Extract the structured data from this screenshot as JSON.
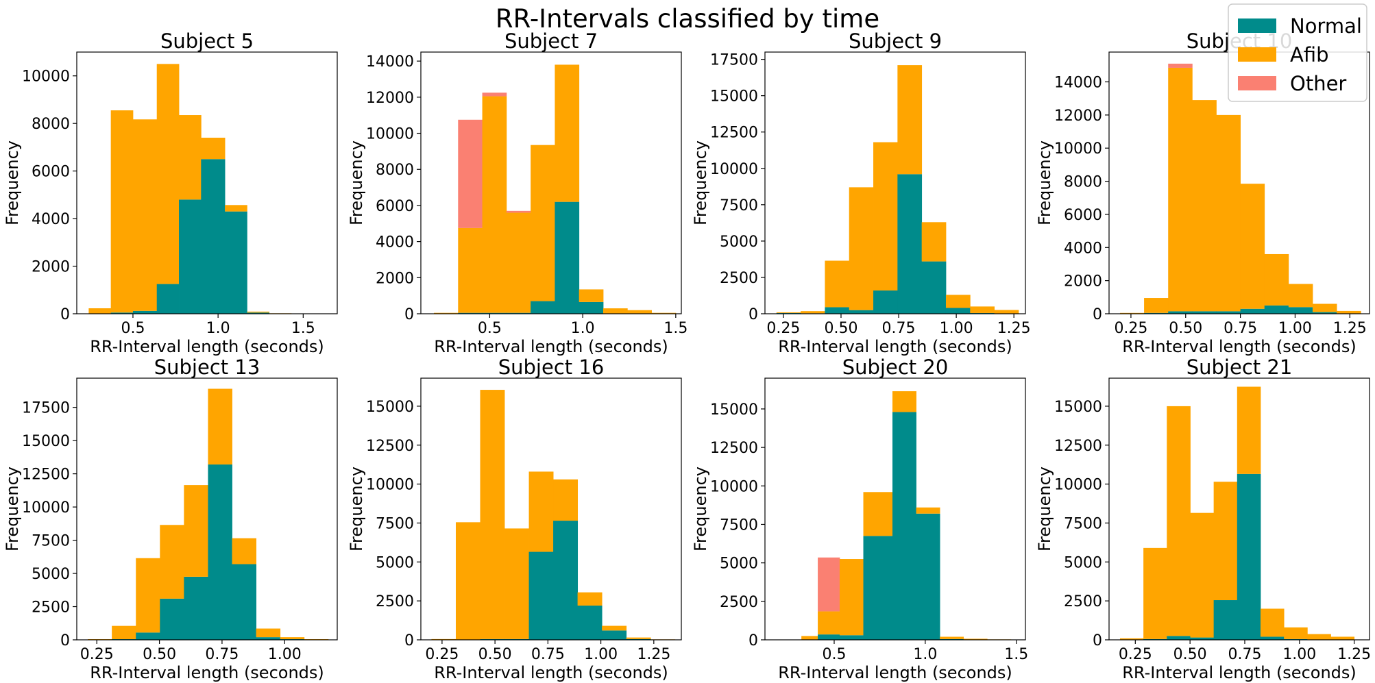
{
  "figure_title": "RR-Intervals classified by time",
  "legend": {
    "placement": "top-right",
    "items": [
      {
        "label": "Normal",
        "color": "#008B8B"
      },
      {
        "label": "Afib",
        "color": "#FFA500"
      },
      {
        "label": "Other",
        "color": "#FA8072"
      }
    ]
  },
  "chart_data": [
    {
      "type": "bar",
      "stacked": true,
      "title": "Subject 5",
      "xlabel": "RR-Interval length (seconds)",
      "ylabel": "Frequency",
      "xlim": [
        0.17,
        1.7
      ],
      "ylim": [
        0,
        11000
      ],
      "xticks": [
        0.5,
        1.0,
        1.5
      ],
      "xtick_labels": [
        "0.5",
        "1.0",
        "1.5"
      ],
      "yticks": [
        0,
        2000,
        4000,
        6000,
        8000,
        10000
      ],
      "ytick_labels": [
        "0",
        "2000",
        "4000",
        "6000",
        "8000",
        "10000"
      ],
      "bin_edges": [
        0.24,
        0.37,
        0.5,
        0.64,
        0.77,
        0.9,
        1.04,
        1.17,
        1.3,
        1.43,
        1.57,
        1.7
      ],
      "series": [
        {
          "name": "Normal",
          "values": [
            0,
            50,
            120,
            1250,
            4800,
            6500,
            4300,
            50,
            10,
            5,
            0
          ]
        },
        {
          "name": "Afib",
          "values": [
            230,
            8500,
            8050,
            9250,
            3550,
            900,
            270,
            40,
            10,
            5,
            0
          ]
        },
        {
          "name": "Other",
          "values": [
            0,
            0,
            0,
            0,
            0,
            0,
            0,
            0,
            0,
            0,
            0
          ]
        }
      ]
    },
    {
      "type": "bar",
      "stacked": true,
      "title": "Subject 7",
      "xlabel": "RR-Interval length (seconds)",
      "ylabel": "Frequency",
      "xlim": [
        0.13,
        1.53
      ],
      "ylim": [
        0,
        14500
      ],
      "xticks": [
        0.5,
        1.0,
        1.5
      ],
      "xtick_labels": [
        "0.5",
        "1.0",
        "1.5"
      ],
      "yticks": [
        0,
        2000,
        4000,
        6000,
        8000,
        10000,
        12000,
        14000
      ],
      "ytick_labels": [
        "0",
        "2000",
        "4000",
        "6000",
        "8000",
        "10000",
        "12000",
        "14000"
      ],
      "bin_edges": [
        0.2,
        0.33,
        0.46,
        0.59,
        0.72,
        0.85,
        0.98,
        1.11,
        1.24,
        1.37,
        1.5
      ],
      "series": [
        {
          "name": "Normal",
          "values": [
            0,
            50,
            50,
            50,
            700,
            6200,
            650,
            0,
            0,
            0
          ]
        },
        {
          "name": "Afib",
          "values": [
            50,
            4700,
            12000,
            5550,
            8650,
            7600,
            700,
            300,
            200,
            50
          ]
        },
        {
          "name": "Other",
          "values": [
            0,
            6000,
            200,
            100,
            0,
            0,
            0,
            0,
            0,
            0
          ]
        }
      ]
    },
    {
      "type": "bar",
      "stacked": true,
      "title": "Subject 9",
      "xlabel": "RR-Interval length (seconds)",
      "ylabel": "Frequency",
      "xlim": [
        0.17,
        1.3
      ],
      "ylim": [
        0,
        18000
      ],
      "xticks": [
        0.25,
        0.5,
        0.75,
        1.0,
        1.25
      ],
      "xtick_labels": [
        "0.25",
        "0.50",
        "0.75",
        "1.00",
        "1.25"
      ],
      "yticks": [
        0,
        2500,
        5000,
        7500,
        10000,
        12500,
        15000,
        17500
      ],
      "ytick_labels": [
        "0",
        "2500",
        "5000",
        "7500",
        "10000",
        "12500",
        "15000",
        "17500"
      ],
      "bin_edges": [
        0.22,
        0.325,
        0.43,
        0.535,
        0.64,
        0.745,
        0.85,
        0.955,
        1.06,
        1.165,
        1.27
      ],
      "series": [
        {
          "name": "Normal",
          "values": [
            50,
            30,
            450,
            250,
            1600,
            9600,
            3600,
            400,
            50,
            10
          ]
        },
        {
          "name": "Afib",
          "values": [
            50,
            150,
            3200,
            8450,
            10200,
            7500,
            2700,
            900,
            450,
            250
          ]
        },
        {
          "name": "Other",
          "values": [
            0,
            0,
            0,
            0,
            0,
            0,
            0,
            0,
            0,
            0
          ]
        }
      ]
    },
    {
      "type": "bar",
      "stacked": true,
      "title": "Subject 10",
      "xlabel": "RR-Interval length (seconds)",
      "ylabel": "Frequency",
      "xlim": [
        0.15,
        1.34
      ],
      "ylim": [
        0,
        15800
      ],
      "xticks": [
        0.25,
        0.5,
        0.75,
        1.0,
        1.25
      ],
      "xtick_labels": [
        "0.25",
        "0.50",
        "0.75",
        "1.00",
        "1.25"
      ],
      "yticks": [
        0,
        2000,
        4000,
        6000,
        8000,
        10000,
        12000,
        14000
      ],
      "ytick_labels": [
        "0",
        "2000",
        "4000",
        "6000",
        "8000",
        "10000",
        "12000",
        "14000"
      ],
      "bin_edges": [
        0.2,
        0.31,
        0.42,
        0.53,
        0.64,
        0.75,
        0.86,
        0.97,
        1.08,
        1.19,
        1.3
      ],
      "series": [
        {
          "name": "Normal",
          "values": [
            0,
            50,
            150,
            150,
            150,
            300,
            500,
            400,
            100,
            20
          ]
        },
        {
          "name": "Afib",
          "values": [
            50,
            900,
            14700,
            12750,
            11850,
            7550,
            3100,
            1400,
            500,
            150
          ]
        },
        {
          "name": "Other",
          "values": [
            0,
            0,
            250,
            0,
            0,
            0,
            0,
            0,
            0,
            0
          ]
        }
      ]
    },
    {
      "type": "bar",
      "stacked": true,
      "title": "Subject 13",
      "xlabel": "RR-Interval length (seconds)",
      "ylabel": "Frequency",
      "xlim": [
        0.17,
        1.21
      ],
      "ylim": [
        0,
        19700
      ],
      "xticks": [
        0.25,
        0.5,
        0.75,
        1.0
      ],
      "xtick_labels": [
        "0.25",
        "0.50",
        "0.75",
        "1.00"
      ],
      "yticks": [
        0,
        2500,
        5000,
        7500,
        10000,
        12500,
        15000,
        17500
      ],
      "ytick_labels": [
        "0",
        "2500",
        "5000",
        "7500",
        "10000",
        "12500",
        "15000",
        "17500"
      ],
      "bin_edges": [
        0.214,
        0.31,
        0.406,
        0.502,
        0.598,
        0.694,
        0.79,
        0.886,
        0.982,
        1.078,
        1.174
      ],
      "series": [
        {
          "name": "Normal",
          "values": [
            0,
            50,
            550,
            3100,
            4750,
            13200,
            5700,
            200,
            50,
            20
          ]
        },
        {
          "name": "Afib",
          "values": [
            50,
            1000,
            5600,
            5550,
            6900,
            5700,
            1950,
            650,
            150,
            30
          ]
        },
        {
          "name": "Other",
          "values": [
            0,
            0,
            0,
            0,
            0,
            0,
            0,
            0,
            0,
            0
          ]
        }
      ]
    },
    {
      "type": "bar",
      "stacked": true,
      "title": "Subject 16",
      "xlabel": "RR-Interval length (seconds)",
      "ylabel": "Frequency",
      "xlim": [
        0.15,
        1.38
      ],
      "ylim": [
        0,
        16800
      ],
      "xticks": [
        0.25,
        0.5,
        0.75,
        1.0,
        1.25
      ],
      "xtick_labels": [
        "0.25",
        "0.50",
        "0.75",
        "1.00",
        "1.25"
      ],
      "yticks": [
        0,
        2500,
        5000,
        7500,
        10000,
        12500,
        15000
      ],
      "ytick_labels": [
        "0",
        "2500",
        "5000",
        "7500",
        "10000",
        "12500",
        "15000"
      ],
      "bin_edges": [
        0.2,
        0.315,
        0.43,
        0.545,
        0.66,
        0.775,
        0.89,
        1.005,
        1.12,
        1.235,
        1.35
      ],
      "series": [
        {
          "name": "Normal",
          "values": [
            0,
            0,
            50,
            50,
            5650,
            7650,
            2200,
            600,
            50,
            0
          ]
        },
        {
          "name": "Afib",
          "values": [
            50,
            7550,
            16000,
            7100,
            5150,
            2650,
            850,
            300,
            100,
            30
          ]
        },
        {
          "name": "Other",
          "values": [
            0,
            0,
            0,
            0,
            0,
            0,
            0,
            0,
            0,
            0
          ]
        }
      ]
    },
    {
      "type": "bar",
      "stacked": true,
      "title": "Subject 20",
      "xlabel": "RR-Interval length (seconds)",
      "ylabel": "Frequency",
      "xlim": [
        0.12,
        1.55
      ],
      "ylim": [
        0,
        17000
      ],
      "xticks": [
        0.5,
        1.0,
        1.5
      ],
      "xtick_labels": [
        "0.5",
        "1.0",
        "1.5"
      ],
      "yticks": [
        0,
        2500,
        5000,
        7500,
        10000,
        12500,
        15000
      ],
      "ytick_labels": [
        "0",
        "2500",
        "5000",
        "7500",
        "10000",
        "12500",
        "15000"
      ],
      "bin_edges": [
        0.19,
        0.32,
        0.41,
        0.53,
        0.66,
        0.82,
        0.95,
        1.08,
        1.21,
        1.34,
        1.47
      ],
      "series": [
        {
          "name": "Normal",
          "values": [
            0,
            0,
            350,
            300,
            6750,
            14800,
            8200,
            50,
            20,
            0
          ]
        },
        {
          "name": "Afib",
          "values": [
            0,
            250,
            1500,
            4950,
            2850,
            1350,
            400,
            150,
            50,
            30
          ]
        },
        {
          "name": "Other",
          "values": [
            0,
            0,
            3500,
            0,
            0,
            0,
            0,
            0,
            0,
            0
          ]
        }
      ]
    },
    {
      "type": "bar",
      "stacked": true,
      "title": "Subject 21",
      "xlabel": "RR-Interval length (seconds)",
      "ylabel": "Frequency",
      "xlim": [
        0.13,
        1.32
      ],
      "ylim": [
        0,
        16800
      ],
      "xticks": [
        0.25,
        0.5,
        0.75,
        1.0,
        1.25
      ],
      "xtick_labels": [
        "0.25",
        "0.50",
        "0.75",
        "1.00",
        "1.25"
      ],
      "yticks": [
        0,
        2500,
        5000,
        7500,
        10000,
        12500,
        15000
      ],
      "ytick_labels": [
        "0",
        "2500",
        "5000",
        "7500",
        "10000",
        "12500",
        "15000"
      ],
      "bin_edges": [
        0.18,
        0.287,
        0.394,
        0.501,
        0.608,
        0.715,
        0.822,
        0.929,
        1.036,
        1.143,
        1.25
      ],
      "series": [
        {
          "name": "Normal",
          "values": [
            0,
            50,
            250,
            150,
            2550,
            10650,
            200,
            50,
            20,
            0
          ]
        },
        {
          "name": "Afib",
          "values": [
            100,
            5850,
            14750,
            8000,
            7600,
            5600,
            1800,
            750,
            350,
            200
          ]
        },
        {
          "name": "Other",
          "values": [
            0,
            0,
            0,
            0,
            0,
            0,
            0,
            0,
            0,
            0
          ]
        }
      ]
    }
  ]
}
